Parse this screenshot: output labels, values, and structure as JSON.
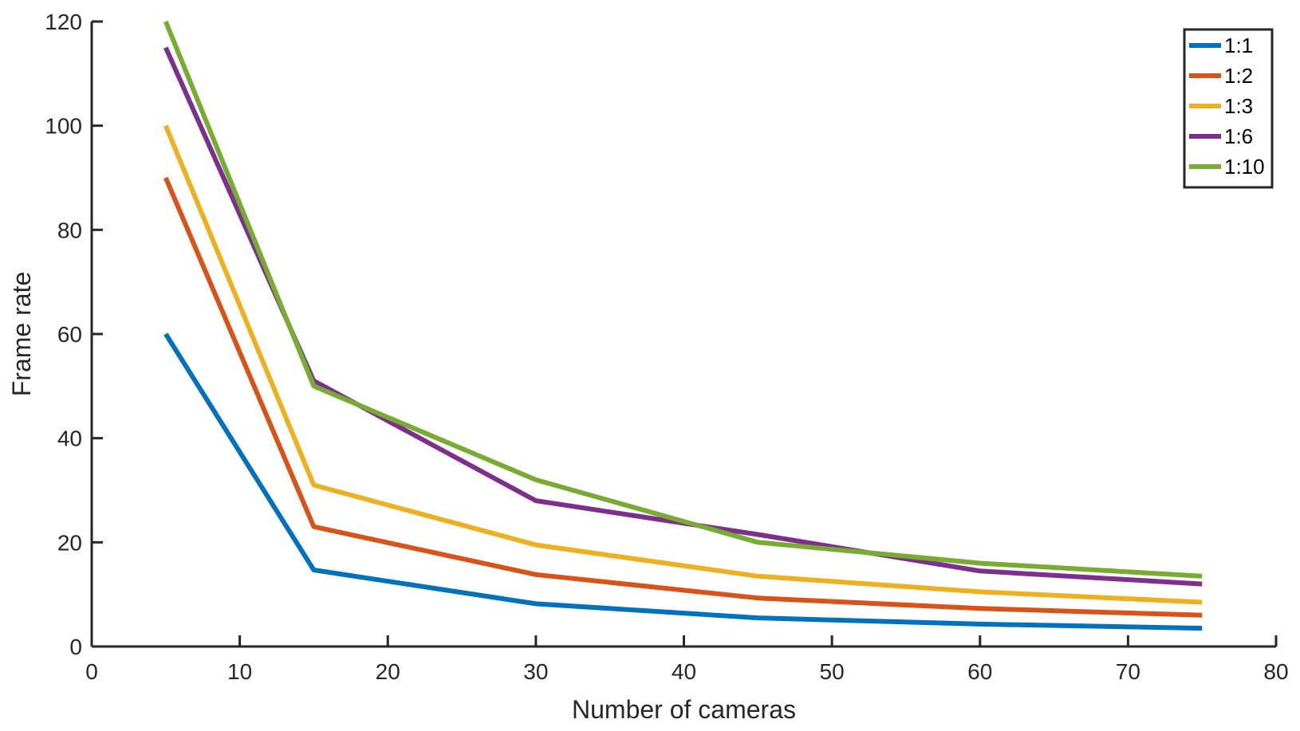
{
  "chart_data": {
    "type": "line",
    "xlabel": "Number of cameras",
    "ylabel": "Frame rate",
    "xlim": [
      0,
      80
    ],
    "ylim": [
      0,
      120
    ],
    "xticks": [
      0,
      10,
      20,
      30,
      40,
      50,
      60,
      70,
      80
    ],
    "yticks": [
      0,
      20,
      40,
      60,
      80,
      100,
      120
    ],
    "grid": false,
    "legend_position": "top-right",
    "x": [
      5,
      15,
      30,
      45,
      60,
      75
    ],
    "series": [
      {
        "name": "1:1",
        "color": "#0072BD",
        "values": [
          60,
          14.7,
          8.2,
          5.5,
          4.3,
          3.5
        ]
      },
      {
        "name": "1:2",
        "color": "#D95319",
        "values": [
          90,
          23,
          13.8,
          9.3,
          7.3,
          6
        ]
      },
      {
        "name": "1:3",
        "color": "#EDB120",
        "values": [
          100,
          31,
          19.5,
          13.5,
          10.5,
          8.5
        ]
      },
      {
        "name": "1:6",
        "color": "#7E2F8E",
        "values": [
          115,
          51,
          28,
          21.5,
          14.5,
          12
        ]
      },
      {
        "name": "1:10",
        "color": "#77AC30",
        "values": [
          120,
          50,
          32,
          20,
          16,
          13.5
        ]
      }
    ]
  }
}
